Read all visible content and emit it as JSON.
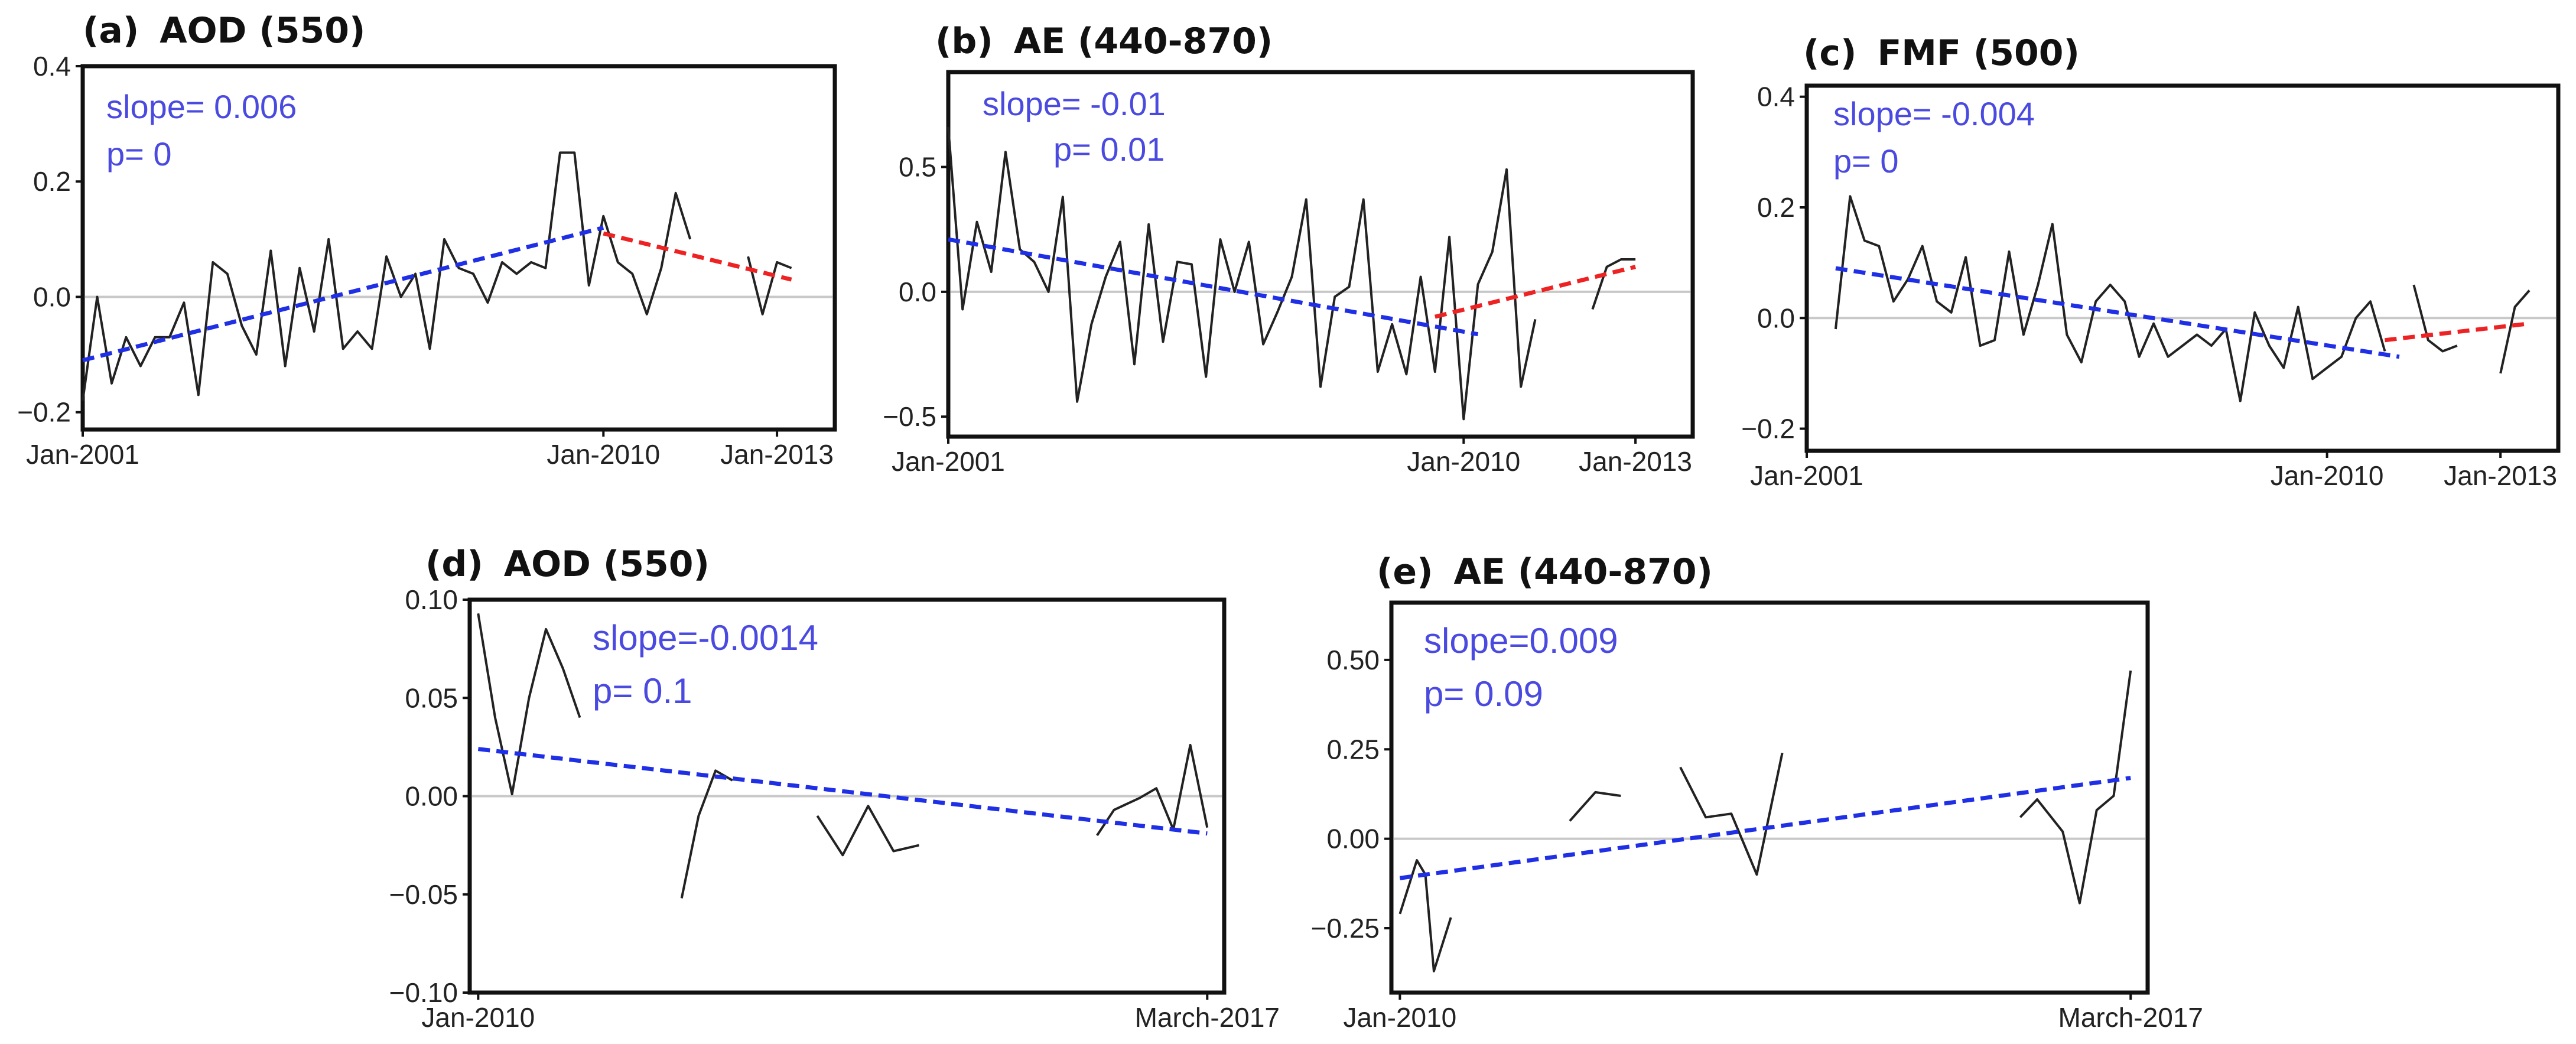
{
  "colors": {
    "line": "#222222",
    "trend1": "#1f2fe6",
    "trend2": "#ee2222",
    "zero": "#c8c8c8",
    "annotation": "#4a4ae0"
  },
  "chart_data": [
    {
      "panel": "a",
      "type": "line",
      "title_letter": "(a)",
      "title_text": "AOD (550)",
      "xlim": [
        0,
        156
      ],
      "ylim": [
        -0.23,
        0.4
      ],
      "yticks": [
        -0.2,
        0.0,
        0.2,
        0.4
      ],
      "ytick_labels": [
        "−0.2",
        "0.0",
        "0.2",
        "0.4"
      ],
      "xticks": [
        {
          "x": 0,
          "label": "Jan-2001"
        },
        {
          "x": 108,
          "label": "Jan-2010"
        },
        {
          "x": 144,
          "label": "Jan-2013"
        }
      ],
      "series": [
        {
          "name": "anomaly",
          "segments": [
            [
              [
                0,
                -0.18
              ],
              [
                3,
                0.0
              ],
              [
                6,
                -0.15
              ],
              [
                9,
                -0.07
              ],
              [
                12,
                -0.12
              ],
              [
                15,
                -0.07
              ],
              [
                18,
                -0.07
              ],
              [
                21,
                -0.01
              ],
              [
                24,
                -0.17
              ],
              [
                27,
                0.06
              ],
              [
                30,
                0.04
              ],
              [
                33,
                -0.05
              ],
              [
                36,
                -0.1
              ],
              [
                39,
                0.08
              ],
              [
                42,
                -0.12
              ],
              [
                45,
                0.05
              ],
              [
                48,
                -0.06
              ],
              [
                51,
                0.1
              ],
              [
                54,
                -0.09
              ],
              [
                57,
                -0.06
              ],
              [
                60,
                -0.09
              ],
              [
                63,
                0.07
              ],
              [
                66,
                0.0
              ],
              [
                69,
                0.04
              ],
              [
                72,
                -0.09
              ],
              [
                75,
                0.1
              ],
              [
                78,
                0.05
              ],
              [
                81,
                0.04
              ],
              [
                84,
                -0.01
              ],
              [
                87,
                0.06
              ],
              [
                90,
                0.04
              ],
              [
                93,
                0.06
              ],
              [
                96,
                0.05
              ],
              [
                99,
                0.25
              ],
              [
                102,
                0.25
              ],
              [
                105,
                0.02
              ],
              [
                108,
                0.14
              ],
              [
                111,
                0.06
              ],
              [
                114,
                0.04
              ],
              [
                117,
                -0.03
              ],
              [
                120,
                0.05
              ],
              [
                123,
                0.18
              ],
              [
                126,
                0.1
              ]
            ],
            [
              [
                138,
                0.07
              ],
              [
                141,
                -0.03
              ],
              [
                144,
                0.06
              ],
              [
                147,
                0.05
              ]
            ]
          ]
        }
      ],
      "trends": [
        {
          "color": "trend1",
          "x": [
            0,
            108
          ],
          "y": [
            -0.11,
            0.12
          ]
        },
        {
          "color": "trend2",
          "x": [
            108,
            147
          ],
          "y": [
            0.11,
            0.03
          ]
        }
      ],
      "slope_text": "slope= 0.006",
      "p_text": "p= 0"
    },
    {
      "panel": "b",
      "type": "line",
      "title_letter": "(b)",
      "title_text": "AE (440-870)",
      "xlim": [
        0,
        156
      ],
      "ylim": [
        -0.58,
        0.88
      ],
      "yticks": [
        -0.5,
        0.0,
        0.5
      ],
      "ytick_labels": [
        "−0.5",
        "0.0",
        "0.5"
      ],
      "xticks": [
        {
          "x": 0,
          "label": "Jan-2001"
        },
        {
          "x": 108,
          "label": "Jan-2010"
        },
        {
          "x": 144,
          "label": "Jan-2013"
        }
      ],
      "series": [
        {
          "name": "anomaly",
          "segments": [
            [
              [
                0,
                0.66
              ],
              [
                3,
                -0.07
              ],
              [
                6,
                0.28
              ],
              [
                9,
                0.08
              ],
              [
                12,
                0.56
              ],
              [
                15,
                0.17
              ],
              [
                18,
                0.12
              ],
              [
                21,
                0.0
              ],
              [
                24,
                0.38
              ],
              [
                27,
                -0.44
              ],
              [
                30,
                -0.13
              ],
              [
                33,
                0.06
              ],
              [
                36,
                0.2
              ],
              [
                39,
                -0.29
              ],
              [
                42,
                0.27
              ],
              [
                45,
                -0.2
              ],
              [
                48,
                0.12
              ],
              [
                51,
                0.11
              ],
              [
                54,
                -0.34
              ],
              [
                57,
                0.21
              ],
              [
                60,
                0.0
              ],
              [
                63,
                0.2
              ],
              [
                66,
                -0.21
              ],
              [
                69,
                -0.08
              ],
              [
                72,
                0.06
              ],
              [
                75,
                0.37
              ],
              [
                78,
                -0.38
              ],
              [
                81,
                -0.02
              ],
              [
                84,
                0.02
              ],
              [
                87,
                0.37
              ],
              [
                90,
                -0.32
              ],
              [
                93,
                -0.13
              ],
              [
                96,
                -0.33
              ],
              [
                99,
                0.06
              ],
              [
                102,
                -0.32
              ],
              [
                105,
                0.22
              ],
              [
                108,
                -0.51
              ],
              [
                111,
                0.03
              ],
              [
                114,
                0.16
              ],
              [
                117,
                0.49
              ],
              [
                120,
                -0.38
              ],
              [
                123,
                -0.11
              ]
            ],
            [
              [
                135,
                -0.07
              ],
              [
                138,
                0.1
              ],
              [
                141,
                0.13
              ],
              [
                144,
                0.13
              ]
            ]
          ]
        }
      ],
      "trends": [
        {
          "color": "trend1",
          "x": [
            0,
            111
          ],
          "y": [
            0.21,
            -0.17
          ]
        },
        {
          "color": "trend2",
          "x": [
            102,
            144
          ],
          "y": [
            -0.1,
            0.1
          ]
        }
      ],
      "slope_text": "slope= -0.01",
      "p_text": "p= 0.01"
    },
    {
      "panel": "c",
      "type": "line",
      "title_letter": "(c)",
      "title_text": "FMF (500)",
      "xlim": [
        0,
        156
      ],
      "ylim": [
        -0.24,
        0.42
      ],
      "yticks": [
        -0.2,
        0.0,
        0.2,
        0.4
      ],
      "ytick_labels": [
        "−0.2",
        "0.0",
        "0.2",
        "0.4"
      ],
      "xticks": [
        {
          "x": 0,
          "label": "Jan-2001"
        },
        {
          "x": 108,
          "label": "Jan-2010"
        },
        {
          "x": 144,
          "label": "Jan-2013"
        }
      ],
      "series": [
        {
          "name": "anomaly",
          "segments": [
            [
              [
                6,
                -0.02
              ],
              [
                9,
                0.22
              ],
              [
                12,
                0.14
              ],
              [
                15,
                0.13
              ],
              [
                18,
                0.03
              ],
              [
                21,
                0.07
              ],
              [
                24,
                0.13
              ],
              [
                27,
                0.03
              ],
              [
                30,
                0.01
              ],
              [
                33,
                0.11
              ],
              [
                36,
                -0.05
              ],
              [
                39,
                -0.04
              ],
              [
                42,
                0.12
              ],
              [
                45,
                -0.03
              ],
              [
                48,
                0.06
              ],
              [
                51,
                0.17
              ],
              [
                54,
                -0.03
              ],
              [
                57,
                -0.08
              ],
              [
                60,
                0.03
              ],
              [
                63,
                0.06
              ],
              [
                66,
                0.03
              ],
              [
                69,
                -0.07
              ],
              [
                72,
                -0.01
              ],
              [
                75,
                -0.07
              ],
              [
                78,
                -0.05
              ],
              [
                81,
                -0.03
              ],
              [
                84,
                -0.05
              ],
              [
                87,
                -0.02
              ],
              [
                90,
                -0.15
              ],
              [
                93,
                0.01
              ],
              [
                96,
                -0.05
              ],
              [
                99,
                -0.09
              ],
              [
                102,
                0.02
              ],
              [
                105,
                -0.11
              ],
              [
                108,
                -0.09
              ],
              [
                111,
                -0.07
              ],
              [
                114,
                0.0
              ],
              [
                117,
                0.03
              ],
              [
                120,
                -0.06
              ]
            ],
            [
              [
                126,
                0.06
              ],
              [
                129,
                -0.04
              ],
              [
                132,
                -0.06
              ],
              [
                135,
                -0.05
              ]
            ],
            [
              [
                144,
                -0.1
              ],
              [
                147,
                0.02
              ],
              [
                150,
                0.05
              ]
            ]
          ]
        }
      ],
      "trends": [
        {
          "color": "trend1",
          "x": [
            6,
            123
          ],
          "y": [
            0.09,
            -0.07
          ]
        },
        {
          "color": "trend2",
          "x": [
            120,
            150
          ],
          "y": [
            -0.04,
            -0.01
          ]
        }
      ],
      "slope_text": "slope= -0.004",
      "p_text": "p= 0"
    },
    {
      "panel": "d",
      "type": "line",
      "title_letter": "(d)",
      "title_text": "AOD (550)",
      "xlim": [
        -1,
        88
      ],
      "ylim": [
        -0.1,
        0.1
      ],
      "yticks": [
        -0.1,
        -0.05,
        0.0,
        0.05,
        0.1
      ],
      "ytick_labels": [
        "−0.10",
        "−0.05",
        "0.00",
        "0.05",
        "0.10"
      ],
      "xticks": [
        {
          "x": 0,
          "label": "Jan-2010"
        },
        {
          "x": 86,
          "label": "March-2017"
        }
      ],
      "series": [
        {
          "name": "anomaly",
          "segments": [
            [
              [
                0,
                0.093
              ],
              [
                2,
                0.04
              ],
              [
                4,
                0.001
              ],
              [
                6,
                0.05
              ],
              [
                8,
                0.085
              ],
              [
                10,
                0.065
              ],
              [
                12,
                0.04
              ]
            ],
            [
              [
                24,
                -0.052
              ],
              [
                26,
                -0.01
              ],
              [
                28,
                0.013
              ],
              [
                30,
                0.008
              ]
            ],
            [
              [
                40,
                -0.01
              ],
              [
                43,
                -0.03
              ],
              [
                46,
                -0.005
              ],
              [
                49,
                -0.028
              ],
              [
                52,
                -0.025
              ]
            ],
            [
              [
                73,
                -0.02
              ],
              [
                75,
                -0.007
              ],
              [
                78,
                -0.001
              ],
              [
                80,
                0.004
              ],
              [
                82,
                -0.017
              ],
              [
                84,
                0.026
              ],
              [
                86,
                -0.016
              ]
            ]
          ]
        }
      ],
      "trends": [
        {
          "color": "trend1",
          "x": [
            0,
            86
          ],
          "y": [
            0.024,
            -0.019
          ]
        }
      ],
      "slope_text": "slope=-0.0014",
      "p_text": "p= 0.1"
    },
    {
      "panel": "e",
      "type": "line",
      "title_letter": "(e)",
      "title_text": "AE (440-870)",
      "xlim": [
        -1,
        88
      ],
      "ylim": [
        -0.43,
        0.66
      ],
      "yticks": [
        -0.25,
        0.0,
        0.25,
        0.5
      ],
      "ytick_labels": [
        "−0.25",
        "0.00",
        "0.25",
        "0.50"
      ],
      "xticks": [
        {
          "x": 0,
          "label": "Jan-2010"
        },
        {
          "x": 86,
          "label": "March-2017"
        }
      ],
      "series": [
        {
          "name": "anomaly",
          "segments": [
            [
              [
                0,
                -0.21
              ],
              [
                2,
                -0.06
              ],
              [
                3,
                -0.1
              ],
              [
                4,
                -0.37
              ],
              [
                6,
                -0.22
              ]
            ],
            [
              [
                20,
                0.05
              ],
              [
                23,
                0.13
              ],
              [
                26,
                0.12
              ]
            ],
            [
              [
                33,
                0.2
              ],
              [
                36,
                0.06
              ],
              [
                39,
                0.07
              ],
              [
                42,
                -0.1
              ],
              [
                45,
                0.24
              ]
            ],
            [
              [
                73,
                0.06
              ],
              [
                75,
                0.11
              ],
              [
                78,
                0.02
              ],
              [
                80,
                -0.18
              ],
              [
                82,
                0.08
              ],
              [
                84,
                0.12
              ],
              [
                86,
                0.47
              ]
            ]
          ]
        }
      ],
      "trends": [
        {
          "color": "trend1",
          "x": [
            0,
            86
          ],
          "y": [
            -0.11,
            0.17
          ]
        }
      ],
      "slope_text": "slope=0.009",
      "p_text": "p= 0.09"
    }
  ]
}
